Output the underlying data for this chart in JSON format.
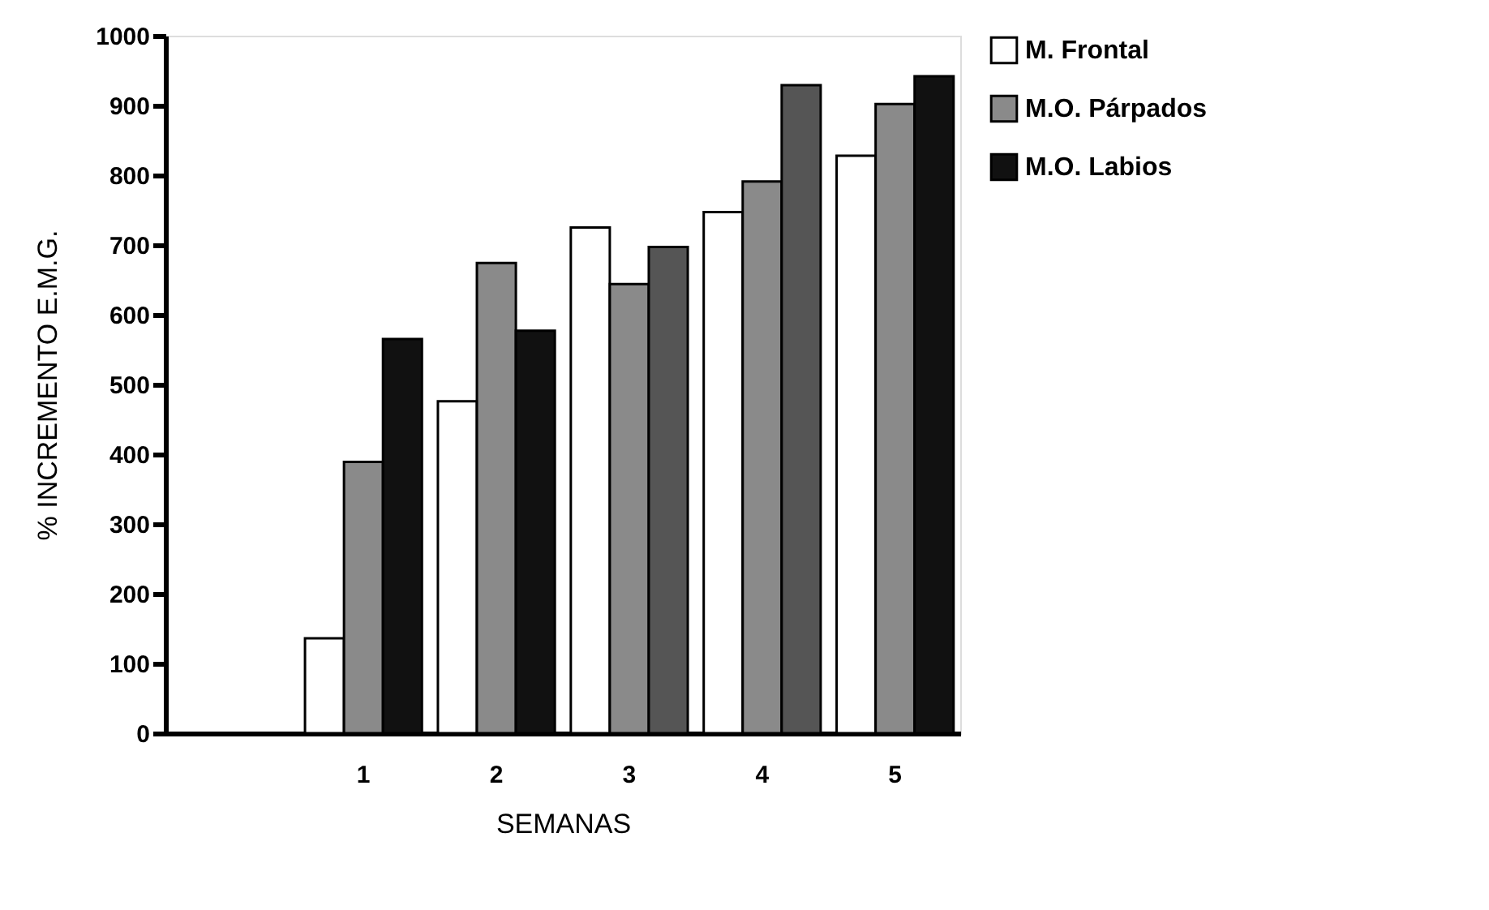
{
  "chart_data": {
    "type": "bar",
    "xlabel": "SEMANAS",
    "ylabel": "% INCREMENTO E.M.G.",
    "categories": [
      null,
      "1",
      "2",
      "3",
      "4",
      "5"
    ],
    "series": [
      {
        "name": "M. Frontal",
        "color": "#ffffff",
        "values": [
          null,
          136,
          476,
          725,
          747,
          828
        ]
      },
      {
        "name": "M.O. Párpados",
        "color": "#8a8a8a",
        "values": [
          null,
          389,
          674,
          644,
          791,
          902
        ]
      },
      {
        "name": "M.O. Labios",
        "color": "#111111",
        "colors": [
          null,
          "#111111",
          "#111111",
          "#555555",
          "#555555",
          "#111111"
        ],
        "values": [
          null,
          565,
          577,
          697,
          929,
          942
        ]
      }
    ],
    "ylim": [
      0,
      1000
    ],
    "yticks": [
      0,
      100,
      200,
      300,
      400,
      500,
      600,
      700,
      800,
      900,
      1000
    ],
    "grid": false,
    "legend": "top right"
  }
}
